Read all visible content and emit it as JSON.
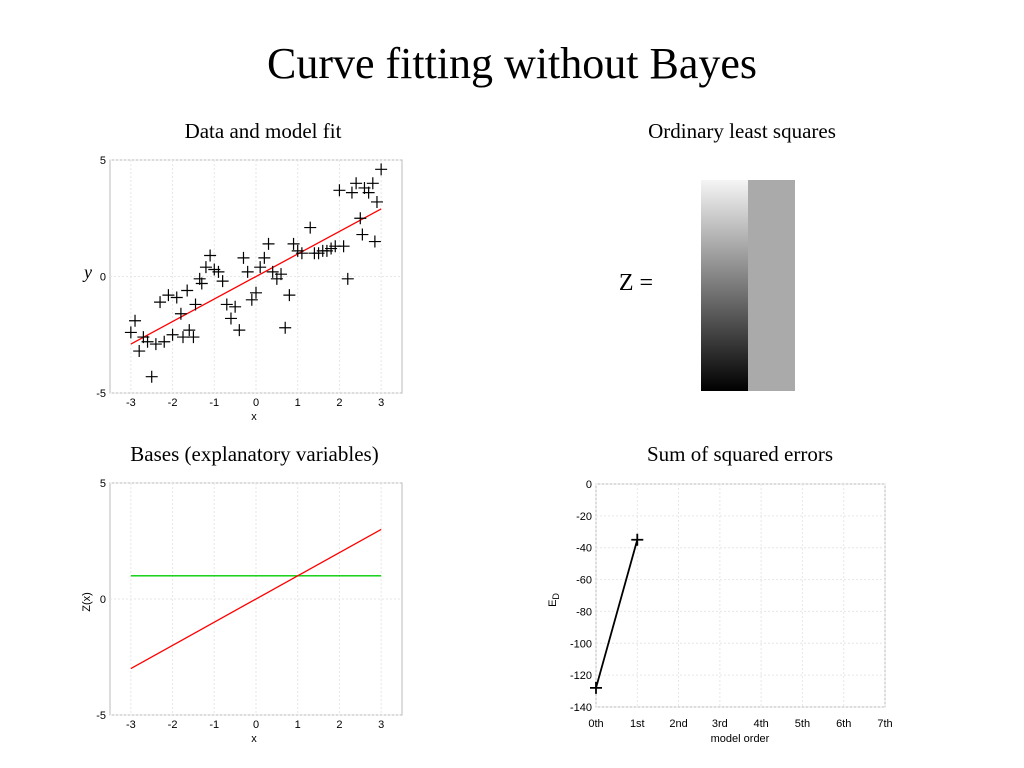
{
  "slide_title": "Curve fitting without Bayes",
  "panels": {
    "data_fit": {
      "subtitle": "Data and model fit",
      "xlabel": "x",
      "ylabel": "y",
      "xticks": [
        "-3",
        "-2",
        "-1",
        "0",
        "1",
        "2",
        "3"
      ],
      "yticks": [
        "5",
        "0",
        "-5"
      ]
    },
    "ols": {
      "subtitle": "Ordinary least squares",
      "equation_label": "Z ="
    },
    "bases": {
      "subtitle": "Bases (explanatory variables)",
      "xlabel": "x",
      "ylabel": "Z(x)",
      "xticks": [
        "-3",
        "-2",
        "-1",
        "0",
        "1",
        "2",
        "3"
      ],
      "yticks": [
        "5",
        "0",
        "-5"
      ]
    },
    "sse": {
      "subtitle": "Sum of squared errors",
      "xlabel": "model order",
      "ylabel": "E",
      "ylabel_sub": "D",
      "xticks": [
        "0th",
        "1st",
        "2nd",
        "3rd",
        "4th",
        "5th",
        "6th",
        "7th"
      ],
      "yticks": [
        "0",
        "-20",
        "-40",
        "-60",
        "-80",
        "-100",
        "-120",
        "-140"
      ]
    }
  },
  "chart_data": [
    {
      "type": "scatter",
      "title": "Data and model fit",
      "xlabel": "x",
      "ylabel": "y",
      "xlim": [
        -3.5,
        3.5
      ],
      "ylim": [
        -5,
        5
      ],
      "grid": true,
      "points": [
        [
          -3.0,
          -2.4
        ],
        [
          -2.9,
          -1.9
        ],
        [
          -2.8,
          -3.2
        ],
        [
          -2.7,
          -2.6
        ],
        [
          -2.6,
          -2.8
        ],
        [
          -2.5,
          -4.3
        ],
        [
          -2.4,
          -2.9
        ],
        [
          -2.3,
          -1.1
        ],
        [
          -2.2,
          -2.8
        ],
        [
          -2.1,
          -0.8
        ],
        [
          -2.0,
          -2.5
        ],
        [
          -1.9,
          -0.9
        ],
        [
          -1.8,
          -1.6
        ],
        [
          -1.75,
          -2.6
        ],
        [
          -1.65,
          -0.6
        ],
        [
          -1.6,
          -2.3
        ],
        [
          -1.5,
          -2.6
        ],
        [
          -1.45,
          -1.2
        ],
        [
          -1.35,
          -0.1
        ],
        [
          -1.3,
          -0.3
        ],
        [
          -1.2,
          0.4
        ],
        [
          -1.1,
          0.9
        ],
        [
          -1.0,
          0.3
        ],
        [
          -0.9,
          0.2
        ],
        [
          -0.8,
          -0.2
        ],
        [
          -0.7,
          -1.2
        ],
        [
          -0.6,
          -1.8
        ],
        [
          -0.5,
          -1.3
        ],
        [
          -0.4,
          -2.3
        ],
        [
          -0.3,
          0.8
        ],
        [
          -0.2,
          0.2
        ],
        [
          -0.1,
          -1.0
        ],
        [
          0.0,
          -0.7
        ],
        [
          0.1,
          0.4
        ],
        [
          0.2,
          0.8
        ],
        [
          0.3,
          1.4
        ],
        [
          0.4,
          0.2
        ],
        [
          0.5,
          -0.1
        ],
        [
          0.6,
          0.1
        ],
        [
          0.7,
          -2.2
        ],
        [
          0.8,
          -0.8
        ],
        [
          0.9,
          1.4
        ],
        [
          1.0,
          1.1
        ],
        [
          1.1,
          1.0
        ],
        [
          1.3,
          2.1
        ],
        [
          1.4,
          1.0
        ],
        [
          1.5,
          1.0
        ],
        [
          1.6,
          1.1
        ],
        [
          1.7,
          1.1
        ],
        [
          1.8,
          1.2
        ],
        [
          1.9,
          1.3
        ],
        [
          2.0,
          3.7
        ],
        [
          2.1,
          1.3
        ],
        [
          2.2,
          -0.1
        ],
        [
          2.3,
          3.6
        ],
        [
          2.4,
          4.0
        ],
        [
          2.5,
          2.5
        ],
        [
          2.55,
          1.8
        ],
        [
          2.6,
          3.8
        ],
        [
          2.7,
          3.6
        ],
        [
          2.8,
          4.0
        ],
        [
          2.85,
          1.5
        ],
        [
          2.9,
          3.2
        ],
        [
          3.0,
          4.6
        ]
      ],
      "series": [
        {
          "type": "line",
          "x": [
            -3,
            3
          ],
          "y": [
            -2.9,
            2.9
          ]
        }
      ]
    },
    {
      "type": "heatmap",
      "title": "Ordinary least squares",
      "label": "Z =",
      "columns": [
        {
          "kind": "gradient",
          "from": "#000000",
          "to": "#f5f5f5"
        },
        {
          "kind": "constant",
          "value": "#aaaaaa"
        }
      ]
    },
    {
      "type": "line",
      "title": "Bases (explanatory variables)",
      "xlabel": "x",
      "ylabel": "Z(x)",
      "xlim": [
        -3.5,
        3.5
      ],
      "ylim": [
        -5,
        5
      ],
      "grid": true,
      "series": [
        {
          "color": "#00cc00",
          "x": [
            -3,
            3
          ],
          "y": [
            1,
            1
          ]
        },
        {
          "color": "#ff0000",
          "x": [
            -3,
            3
          ],
          "y": [
            -3,
            3
          ]
        }
      ]
    },
    {
      "type": "line",
      "title": "Sum of squared errors",
      "xlabel": "model order",
      "ylabel": "E_D",
      "categories": [
        "0th",
        "1st",
        "2nd",
        "3rd",
        "4th",
        "5th",
        "6th",
        "7th"
      ],
      "ylim": [
        -140,
        0
      ],
      "grid": true,
      "series": [
        {
          "color": "#000000",
          "x": [
            0,
            1
          ],
          "y": [
            -128,
            -35
          ]
        }
      ]
    }
  ]
}
